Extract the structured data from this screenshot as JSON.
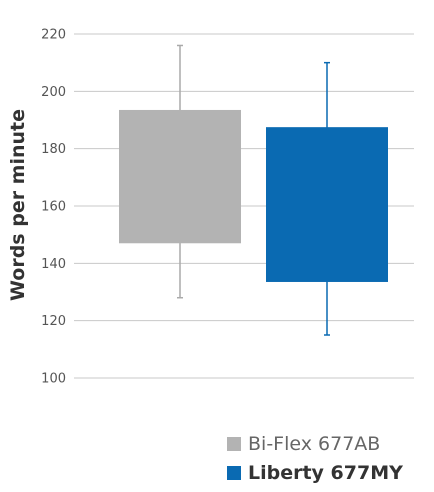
{
  "chart_data": {
    "type": "boxplot",
    "ylabel": "Words per minute",
    "ylim": [
      100,
      220
    ],
    "yticks": [
      100,
      120,
      140,
      160,
      180,
      200,
      220
    ],
    "grid": true,
    "legend_position": "bottom-right",
    "series": [
      {
        "name": "Bi-Flex 677AB",
        "color": "#b3b3b3",
        "whisker_color": "#aaaaaa",
        "box_low": 147,
        "box_high": 193.5,
        "whisker_low": 128,
        "whisker_high": 216,
        "legend_bold": false
      },
      {
        "name": "Liberty 677MY",
        "color": "#0a6ab2",
        "whisker_color": "#0a6ab2",
        "box_low": 133.5,
        "box_high": 187.5,
        "whisker_low": 115,
        "whisker_high": 210,
        "legend_bold": true
      }
    ]
  }
}
